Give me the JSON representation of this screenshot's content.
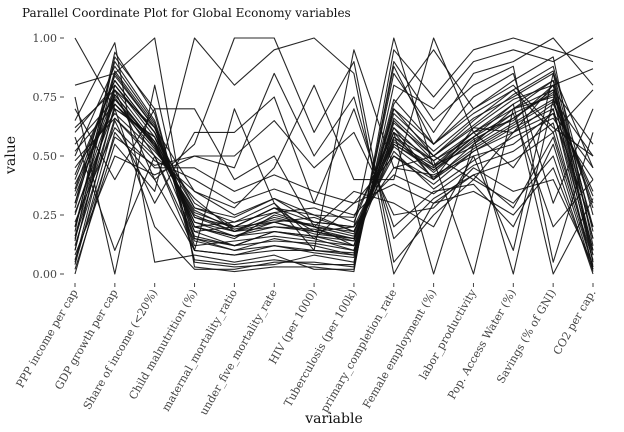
{
  "chart_data": {
    "type": "line",
    "title": "Parallel Coordinate Plot for Global Economy variables",
    "xlabel": "variable",
    "ylabel": "value",
    "ylim": [
      0,
      1
    ],
    "yticks": [
      "0.00",
      "0.25",
      "0.50",
      "0.75",
      "1.00"
    ],
    "ytick_values": [
      0,
      0.25,
      0.5,
      0.75,
      1
    ],
    "grid": false,
    "legend": "none",
    "line_color": "#111111",
    "categories": [
      "PPP income per cap",
      "GDP growth per cap",
      "Share of income (<20%)",
      "Child malnutrition (%)",
      "maternal_mortality_ratio",
      "under_five_mortality_rate",
      "HIV (per 1000)",
      "Tuberculosis (per 100k)",
      "primary_completion_rate",
      "Female employment (%)",
      "labor_productivity",
      "Pop. Access Water (%)",
      "Savings (% of GNI)",
      "CO2 per cap."
    ],
    "series": [
      {
        "values": [
          0.05,
          0.72,
          0.55,
          0.25,
          0.18,
          0.22,
          0.18,
          0.15,
          0.6,
          0.4,
          0.55,
          0.7,
          0.75,
          0.05
        ]
      },
      {
        "values": [
          0.1,
          0.8,
          0.6,
          0.2,
          0.15,
          0.25,
          0.2,
          0.12,
          0.55,
          0.45,
          0.6,
          0.65,
          0.8,
          0.1
        ]
      },
      {
        "values": [
          0.15,
          0.7,
          0.58,
          0.3,
          0.2,
          0.28,
          0.25,
          0.18,
          0.5,
          0.38,
          0.52,
          0.62,
          0.7,
          0.08
        ]
      },
      {
        "values": [
          0.2,
          0.85,
          0.62,
          0.18,
          0.12,
          0.18,
          0.15,
          0.1,
          0.65,
          0.48,
          0.58,
          0.72,
          0.82,
          0.15
        ]
      },
      {
        "values": [
          0.25,
          0.75,
          0.5,
          0.35,
          0.25,
          0.32,
          0.22,
          0.2,
          0.45,
          0.42,
          0.5,
          0.55,
          0.68,
          0.2
        ]
      },
      {
        "values": [
          0.3,
          0.9,
          0.65,
          0.15,
          0.1,
          0.15,
          0.12,
          0.08,
          0.7,
          0.5,
          0.65,
          0.78,
          0.88,
          0.25
        ]
      },
      {
        "values": [
          0.35,
          0.78,
          0.56,
          0.22,
          0.16,
          0.2,
          0.18,
          0.14,
          0.58,
          0.44,
          0.56,
          0.68,
          0.76,
          0.3
        ]
      },
      {
        "values": [
          0.4,
          0.82,
          0.6,
          0.28,
          0.22,
          0.26,
          0.28,
          0.22,
          0.62,
          0.4,
          0.62,
          0.6,
          0.72,
          0.35
        ]
      },
      {
        "values": [
          0.45,
          0.68,
          0.52,
          0.32,
          0.18,
          0.24,
          0.2,
          0.16,
          0.52,
          0.36,
          0.48,
          0.58,
          0.66,
          0.4
        ]
      },
      {
        "values": [
          0.5,
          0.88,
          0.64,
          0.12,
          0.14,
          0.16,
          0.14,
          0.12,
          0.68,
          0.52,
          0.66,
          0.75,
          0.85,
          0.45
        ]
      },
      {
        "values": [
          0.55,
          0.74,
          0.54,
          0.26,
          0.2,
          0.22,
          0.24,
          0.18,
          0.56,
          0.46,
          0.54,
          0.64,
          0.74,
          0.5
        ]
      },
      {
        "values": [
          0.6,
          0.8,
          0.58,
          0.2,
          0.16,
          0.18,
          0.16,
          0.14,
          0.6,
          0.48,
          0.6,
          0.7,
          0.78,
          0.55
        ]
      },
      {
        "values": [
          0.12,
          0.66,
          0.48,
          0.4,
          0.3,
          0.36,
          0.3,
          0.25,
          0.42,
          0.34,
          0.46,
          0.52,
          0.64,
          0.03
        ]
      },
      {
        "values": [
          0.18,
          0.94,
          0.68,
          0.1,
          0.08,
          0.12,
          0.1,
          0.08,
          0.74,
          0.55,
          0.7,
          0.82,
          0.92,
          0.12
        ]
      },
      {
        "values": [
          0.22,
          0.62,
          0.45,
          0.45,
          0.35,
          0.42,
          0.35,
          0.3,
          0.38,
          0.3,
          0.42,
          0.48,
          0.6,
          0.06
        ]
      },
      {
        "values": [
          0.28,
          0.86,
          0.63,
          0.16,
          0.12,
          0.14,
          0.13,
          0.1,
          0.66,
          0.5,
          0.63,
          0.76,
          0.86,
          0.18
        ]
      },
      {
        "values": [
          0.33,
          0.76,
          0.55,
          0.24,
          0.18,
          0.2,
          0.19,
          0.15,
          0.57,
          0.43,
          0.57,
          0.66,
          0.77,
          0.28
        ]
      },
      {
        "values": [
          0.38,
          0.72,
          0.53,
          0.27,
          0.19,
          0.23,
          0.21,
          0.17,
          0.54,
          0.41,
          0.53,
          0.63,
          0.73,
          0.33
        ]
      },
      {
        "values": [
          0.0,
          0.6,
          0.4,
          0.55,
          1.0,
          1.0,
          0.6,
          0.9,
          0.05,
          0.25,
          0.4,
          0.3,
          0.5,
          0.0
        ]
      },
      {
        "values": [
          0.02,
          0.55,
          0.35,
          1.0,
          0.8,
          0.95,
          1.0,
          0.85,
          0.0,
          0.3,
          0.35,
          0.25,
          0.45,
          0.02
        ]
      },
      {
        "values": [
          0.04,
          0.65,
          0.3,
          0.6,
          0.6,
          0.75,
          0.3,
          0.7,
          0.2,
          0.35,
          0.38,
          0.2,
          0.55,
          0.01
        ]
      },
      {
        "values": [
          0.08,
          0.5,
          0.42,
          0.5,
          0.5,
          0.65,
          0.45,
          0.6,
          0.25,
          0.28,
          0.45,
          0.35,
          0.4,
          0.04
        ]
      },
      {
        "values": [
          1.0,
          0.7,
          0.2,
          0.02,
          0.02,
          0.05,
          0.05,
          0.03,
          0.8,
          0.7,
          0.9,
          0.95,
          0.9,
          1.0
        ]
      },
      {
        "values": [
          0.75,
          0.0,
          0.8,
          0.05,
          0.03,
          0.04,
          0.08,
          0.05,
          0.85,
          0.6,
          0.85,
          0.9,
          1.0,
          0.8
        ]
      },
      {
        "values": [
          0.65,
          0.98,
          0.05,
          0.08,
          0.05,
          0.08,
          0.02,
          0.02,
          0.9,
          0.65,
          0.8,
          0.88,
          0.05,
          0.6
        ]
      },
      {
        "values": [
          0.8,
          0.85,
          1.0,
          0.03,
          0.01,
          0.03,
          0.03,
          0.01,
          0.95,
          0.75,
          0.95,
          1.0,
          0.95,
          0.9
        ]
      },
      {
        "values": [
          0.7,
          0.4,
          0.7,
          0.06,
          0.04,
          0.06,
          0.04,
          0.04,
          0.88,
          0.55,
          0.75,
          0.85,
          0.3,
          0.7
        ]
      },
      {
        "values": [
          0.58,
          0.1,
          0.5,
          0.14,
          0.1,
          0.12,
          0.09,
          0.07,
          0.72,
          0.95,
          0.7,
          0.8,
          0.62,
          0.5
        ]
      },
      {
        "values": [
          0.14,
          0.92,
          0.7,
          0.7,
          0.4,
          0.5,
          0.2,
          0.35,
          0.3,
          0.2,
          0.5,
          0.1,
          0.85,
          0.05
        ]
      },
      {
        "values": [
          0.1,
          0.78,
          0.62,
          0.35,
          0.28,
          0.45,
          0.8,
          0.4,
          0.4,
          1.0,
          0.6,
          0.45,
          0.7,
          0.02
        ]
      },
      {
        "values": [
          0.26,
          0.7,
          0.58,
          0.2,
          0.22,
          0.3,
          0.1,
          0.95,
          0.45,
          0.5,
          0.4,
          0.6,
          0.8,
          0.15
        ]
      },
      {
        "values": [
          0.42,
          0.82,
          0.6,
          0.18,
          0.2,
          0.28,
          0.18,
          0.2,
          1.0,
          0.45,
          0.58,
          0.68,
          0.2,
          0.4
        ]
      },
      {
        "values": [
          0.2,
          0.74,
          0.56,
          0.28,
          0.24,
          0.32,
          0.25,
          0.24,
          0.6,
          0.0,
          0.55,
          0.66,
          0.78,
          0.08
        ]
      },
      {
        "values": [
          0.3,
          0.8,
          0.6,
          0.22,
          0.18,
          0.26,
          0.2,
          0.18,
          0.58,
          0.48,
          0.0,
          0.7,
          0.82,
          0.2
        ]
      },
      {
        "values": [
          0.16,
          0.76,
          0.54,
          0.24,
          0.2,
          0.28,
          0.22,
          0.2,
          0.55,
          0.44,
          0.58,
          0.0,
          0.74,
          0.1
        ]
      },
      {
        "values": [
          0.36,
          0.84,
          0.62,
          0.2,
          0.16,
          0.22,
          0.17,
          0.15,
          0.62,
          0.46,
          0.6,
          0.72,
          0.0,
          0.32
        ]
      },
      {
        "values": [
          0.48,
          0.66,
          0.5,
          0.1,
          0.7,
          0.3,
          0.15,
          0.3,
          0.5,
          0.4,
          0.52,
          0.6,
          0.68,
          0.45
        ]
      },
      {
        "values": [
          0.06,
          0.58,
          0.46,
          0.5,
          0.45,
          0.85,
          0.5,
          0.75,
          0.15,
          0.32,
          0.42,
          0.28,
          0.58,
          0.03
        ]
      },
      {
        "values": [
          0.52,
          0.72,
          0.56,
          0.15,
          0.12,
          0.18,
          0.16,
          0.12,
          0.64,
          0.5,
          0.62,
          0.74,
          0.8,
          0.87
        ]
      },
      {
        "values": [
          0.62,
          0.78,
          0.4,
          0.1,
          0.08,
          0.1,
          0.1,
          0.09,
          0.7,
          0.55,
          0.68,
          0.78,
          0.6,
          0.78
        ]
      }
    ]
  }
}
